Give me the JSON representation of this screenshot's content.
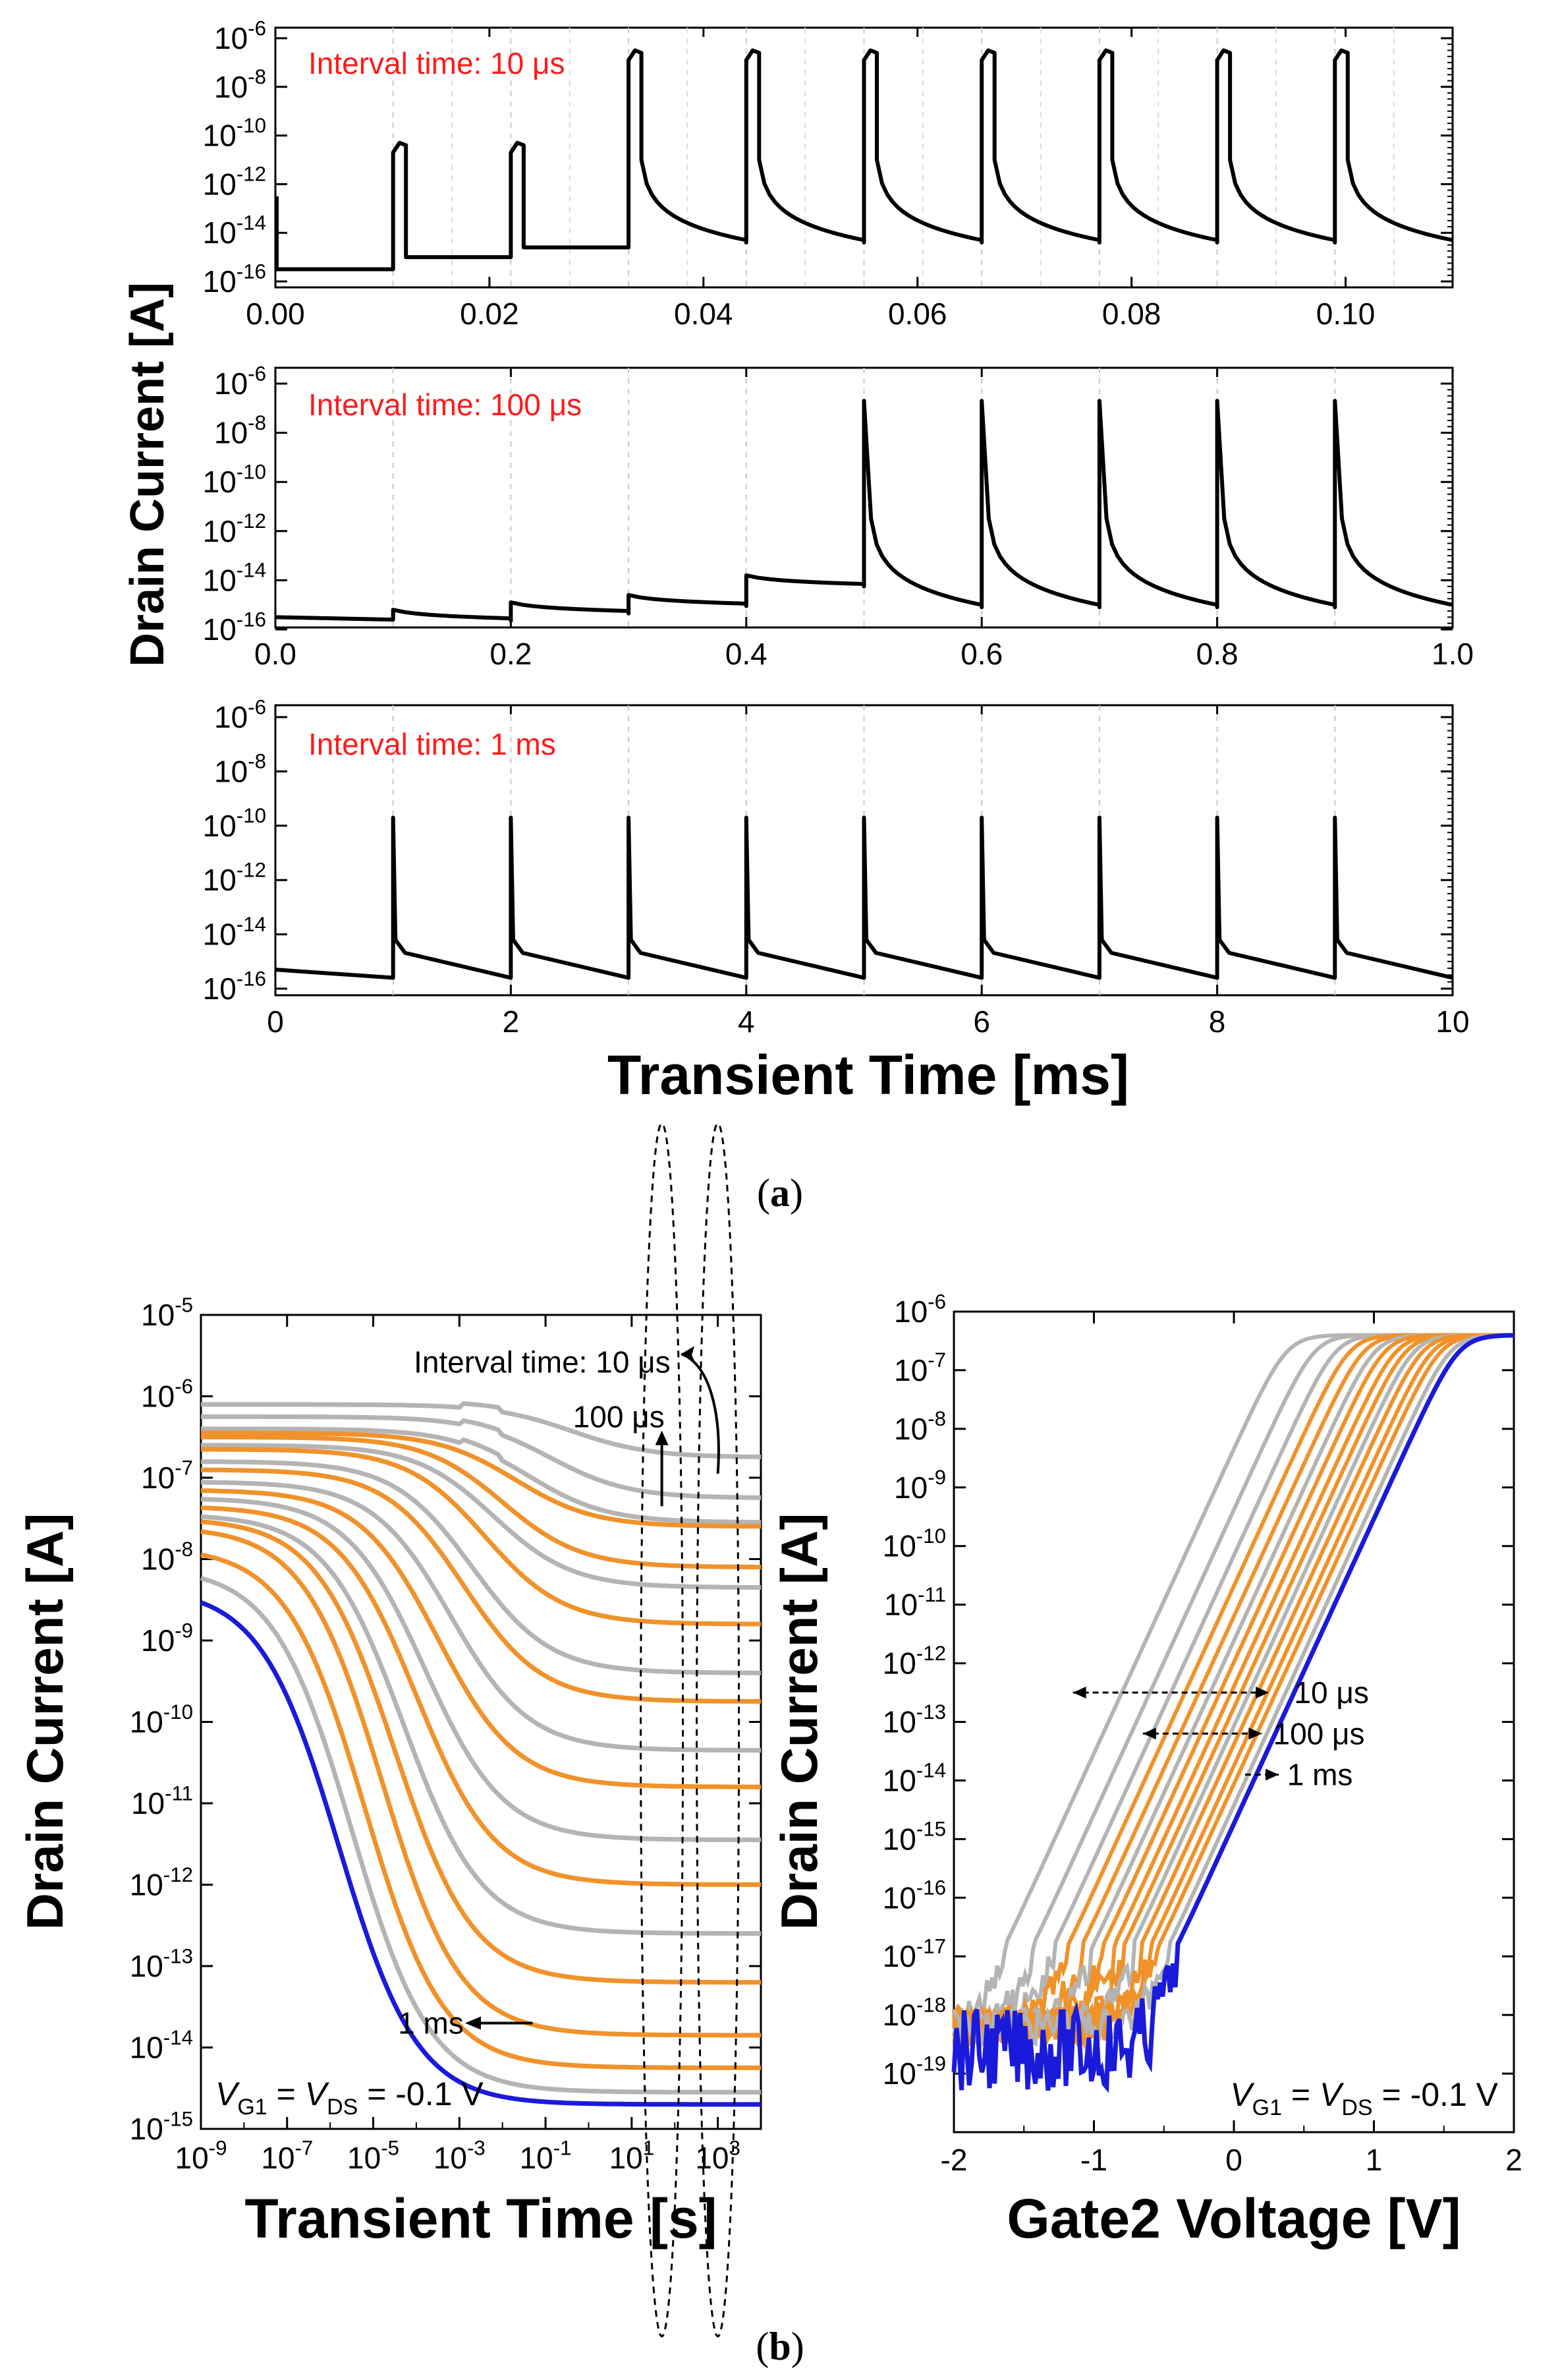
{
  "figure": {
    "panel_a_label": "a",
    "panel_b_label": "b",
    "label_open": "(",
    "label_close": ")"
  },
  "colors": {
    "gray": "#b4b4b4",
    "orange": "#f0922b",
    "blue": "#1a1adb",
    "black": "#000000",
    "red": "#ff1a1a"
  },
  "chart_data": [
    {
      "id": "a1",
      "type": "line",
      "annotation": "Interval time: 10 μs",
      "ylabel": "Drain Current [A]",
      "xlabel": "Transient Time [ms]",
      "yscale": "log",
      "ylim_exp": [
        -16,
        -5.6
      ],
      "y_ticks": [
        "10-16",
        "10-14",
        "10-12",
        "10-10",
        "10-8",
        "10-6"
      ],
      "xlim": [
        0,
        0.11
      ],
      "x_ticks": [
        "0.00",
        "0.02",
        "0.04",
        "0.06",
        "0.08",
        "0.10"
      ],
      "x_tick_values": [
        0,
        0.02,
        0.04,
        0.06,
        0.08,
        0.1
      ],
      "pulse_times": [
        0.011,
        0.022,
        0.033,
        0.044,
        0.055,
        0.066,
        0.077,
        0.088,
        0.099
      ],
      "pulse_width": 0.0012,
      "pulse_peak_exp": [
        -10.3,
        -10.3,
        -6.5,
        -6.5,
        -6.5,
        -6.5,
        -6.5,
        -6.5,
        -6.5
      ],
      "baseline_exp": [
        -15.5,
        -15.0,
        -14.6
      ]
    },
    {
      "id": "a2",
      "type": "line",
      "annotation": "Interval time: 100 μs",
      "yscale": "log",
      "ylim_exp": [
        -16,
        -5.6
      ],
      "y_ticks": [
        "10-16",
        "10-14",
        "10-12",
        "10-10",
        "10-8",
        "10-6"
      ],
      "xlim": [
        0,
        1.0
      ],
      "x_ticks": [
        "0.0",
        "0.2",
        "0.4",
        "0.6",
        "0.8",
        "1.0"
      ],
      "x_tick_values": [
        0,
        0.2,
        0.4,
        0.6,
        0.8,
        1.0
      ],
      "pulse_times": [
        0.1,
        0.2,
        0.3,
        0.4,
        0.5,
        0.6,
        0.7,
        0.8,
        0.9
      ],
      "pulse_peak_exp": [
        -15.2,
        -14.9,
        -14.6,
        -13.8,
        -6.7,
        -6.7,
        -6.7,
        -6.7,
        -6.7
      ],
      "start_exp": -15.5
    },
    {
      "id": "a3",
      "type": "line",
      "annotation": "Interval time: 1 ms",
      "yscale": "log",
      "ylim_exp": [
        -16,
        -5.6
      ],
      "y_ticks": [
        "10-16",
        "10-14",
        "10-12",
        "10-10",
        "10-8",
        "10-6"
      ],
      "xlim": [
        0,
        10
      ],
      "x_ticks": [
        "0",
        "2",
        "4",
        "6",
        "8",
        "10"
      ],
      "x_tick_values": [
        0,
        2,
        4,
        6,
        8,
        10
      ],
      "pulse_times": [
        1,
        2,
        3,
        4,
        5,
        6,
        7,
        8,
        9
      ],
      "pulse_peak_exp": -9.7,
      "start_exp": -15.3
    },
    {
      "id": "b1",
      "type": "line",
      "xlabel": "Transient Time [s]",
      "ylabel": "Drain Current [A]",
      "xscale": "log",
      "yscale": "log",
      "xlim_exp": [
        -9,
        4
      ],
      "ylim_exp": [
        -15,
        -5
      ],
      "x_ticks": [
        "10-9",
        "10-7",
        "10-5",
        "10-3",
        "10-1",
        "101",
        "103"
      ],
      "x_tick_exp": [
        -9,
        -7,
        -5,
        -3,
        -1,
        1,
        3
      ],
      "y_ticks": [
        "10-15",
        "10-14",
        "10-13",
        "10-12",
        "10-11",
        "10-10",
        "10-9",
        "10-8",
        "10-7",
        "10-6",
        "10-5"
      ],
      "y_tick_exp": [
        -15,
        -14,
        -13,
        -12,
        -11,
        -10,
        -9,
        -8,
        -7,
        -6,
        -5
      ],
      "series": [
        {
          "name": "10 μs",
          "color": "gray",
          "start_exp": -6.1,
          "end_exp": -6.75,
          "t_mid_exp": -0.4
        },
        {
          "name": "",
          "color": "gray",
          "start_exp": -6.25,
          "end_exp": -7.25,
          "t_mid_exp": -0.9
        },
        {
          "name": "",
          "color": "gray",
          "start_exp": -6.4,
          "end_exp": -7.55,
          "t_mid_exp": -1.4
        },
        {
          "name": "",
          "color": "orange",
          "start_exp": -6.45,
          "end_exp": -7.6,
          "t_mid_exp": -1.7
        },
        {
          "name": "",
          "color": "orange",
          "start_exp": -6.5,
          "end_exp": -8.1,
          "t_mid_exp": -2.0
        },
        {
          "name": "",
          "color": "gray",
          "start_exp": -6.6,
          "end_exp": -8.35,
          "t_mid_exp": -2.2
        },
        {
          "name": "",
          "color": "orange",
          "start_exp": -6.65,
          "end_exp": -8.8,
          "t_mid_exp": -2.4
        },
        {
          "name": "",
          "color": "gray",
          "start_exp": -6.8,
          "end_exp": -9.4,
          "t_mid_exp": -2.7
        },
        {
          "name": "",
          "color": "orange",
          "start_exp": -6.9,
          "end_exp": -9.75,
          "t_mid_exp": -2.9
        },
        {
          "name": "",
          "color": "gray",
          "start_exp": -7.05,
          "end_exp": -10.35,
          "t_mid_exp": -3.2
        },
        {
          "name": "",
          "color": "orange",
          "start_exp": -7.15,
          "end_exp": -10.8,
          "t_mid_exp": -3.5
        },
        {
          "name": "",
          "color": "gray",
          "start_exp": -7.25,
          "end_exp": -11.45,
          "t_mid_exp": -3.8
        },
        {
          "name": "",
          "color": "orange",
          "start_exp": -7.35,
          "end_exp": -12.0,
          "t_mid_exp": -4.0
        },
        {
          "name": "",
          "color": "gray",
          "start_exp": -7.45,
          "end_exp": -12.6,
          "t_mid_exp": -4.3
        },
        {
          "name": "",
          "color": "orange",
          "start_exp": -7.5,
          "end_exp": -13.2,
          "t_mid_exp": -4.5
        },
        {
          "name": "",
          "color": "orange",
          "start_exp": -7.6,
          "end_exp": -13.85,
          "t_mid_exp": -4.8
        },
        {
          "name": "",
          "color": "orange",
          "start_exp": -7.85,
          "end_exp": -14.25,
          "t_mid_exp": -5.2
        },
        {
          "name": "",
          "color": "gray",
          "start_exp": -8.1,
          "end_exp": -14.55,
          "t_mid_exp": -5.5
        },
        {
          "name": "1 ms",
          "color": "blue",
          "start_exp": -8.35,
          "end_exp": -14.7,
          "t_mid_exp": -5.8
        }
      ],
      "annotations": [
        "Interval time: 10 μs",
        "100 μs",
        "1 ms"
      ],
      "condition": {
        "v1": "V",
        "s1": "G1",
        "eq1": " = ",
        "v2": "V",
        "s2": "DS",
        "eq2": " = -0.1 V"
      }
    },
    {
      "id": "b2",
      "type": "line",
      "xlabel": "Gate2 Voltage [V]",
      "ylabel": "Drain Current [A]",
      "yscale": "log",
      "xlim": [
        -2,
        2
      ],
      "ylim_exp": [
        -20,
        -6
      ],
      "x_ticks": [
        "-2",
        "-1",
        "0",
        "1",
        "2"
      ],
      "x_tick_values": [
        -2,
        -1,
        0,
        1,
        2
      ],
      "y_ticks": [
        "10-19",
        "10-18",
        "10-17",
        "10-16",
        "10-15",
        "10-14",
        "10-13",
        "10-12",
        "10-11",
        "10-10",
        "10-9",
        "10-8",
        "10-7",
        "10-6"
      ],
      "y_tick_exp": [
        -19,
        -18,
        -17,
        -16,
        -15,
        -14,
        -13,
        -12,
        -11,
        -10,
        -9,
        -8,
        -7,
        -6
      ],
      "series": [
        {
          "color": "gray",
          "shift": -1.15
        },
        {
          "color": "gray",
          "shift": -0.95
        },
        {
          "color": "gray",
          "shift": -0.8
        },
        {
          "color": "orange",
          "shift": -0.7
        },
        {
          "color": "orange",
          "shift": -0.6
        },
        {
          "color": "gray",
          "shift": -0.52
        },
        {
          "color": "orange",
          "shift": -0.45
        },
        {
          "color": "orange",
          "shift": -0.37
        },
        {
          "color": "orange",
          "shift": -0.3
        },
        {
          "color": "gray",
          "shift": -0.24
        },
        {
          "color": "orange",
          "shift": -0.18
        },
        {
          "color": "orange",
          "shift": -0.11
        },
        {
          "color": "orange",
          "shift": -0.05
        },
        {
          "color": "gray",
          "shift": 0.02
        },
        {
          "color": "blue",
          "shift": 0.08
        }
      ],
      "annotations": [
        "10 μs",
        "100 μs",
        "1 ms"
      ],
      "condition": {
        "v1": "V",
        "s1": "G1",
        "eq1": " = ",
        "v2": "V",
        "s2": "DS",
        "eq2": " = -0.1 V"
      }
    }
  ]
}
